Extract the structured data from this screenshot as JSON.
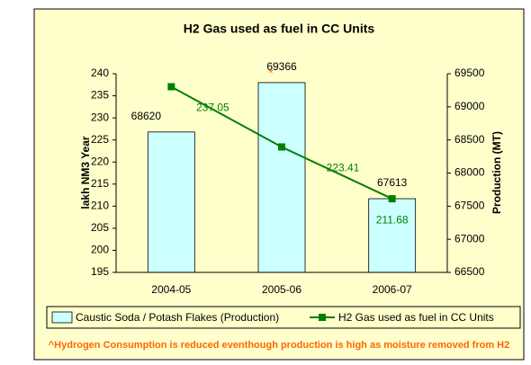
{
  "chart_data": {
    "type": "bar-line",
    "title": "H2 Gas used as fuel in CC Units",
    "categories": [
      "2004-05",
      "2005-06",
      "2006-07"
    ],
    "series": [
      {
        "name": "Caustic Soda / Potash Flakes (Production)",
        "type": "bar",
        "axis": "y2",
        "color": "#CCFFFF",
        "values": [
          68620,
          69366,
          67613
        ]
      },
      {
        "name": "H2 Gas used as fuel in CC Units",
        "type": "line",
        "axis": "y",
        "color": "#008000",
        "values": [
          237.05,
          223.41,
          211.68
        ]
      }
    ],
    "y_label": "lakh NM3 Year",
    "y2_label": "Production (MT)",
    "ylim": [
      195,
      240
    ],
    "yticks": [
      195,
      200,
      205,
      210,
      215,
      220,
      225,
      230,
      235,
      240
    ],
    "y2lim": [
      66500,
      69500
    ],
    "y2ticks": [
      66500,
      67000,
      67500,
      68000,
      68500,
      69000,
      69500
    ],
    "annotation": "*",
    "footnote": "^Hydrogen Consumption is reduced eventhough production is high as moisture removed from H2",
    "legend": "bottom"
  }
}
